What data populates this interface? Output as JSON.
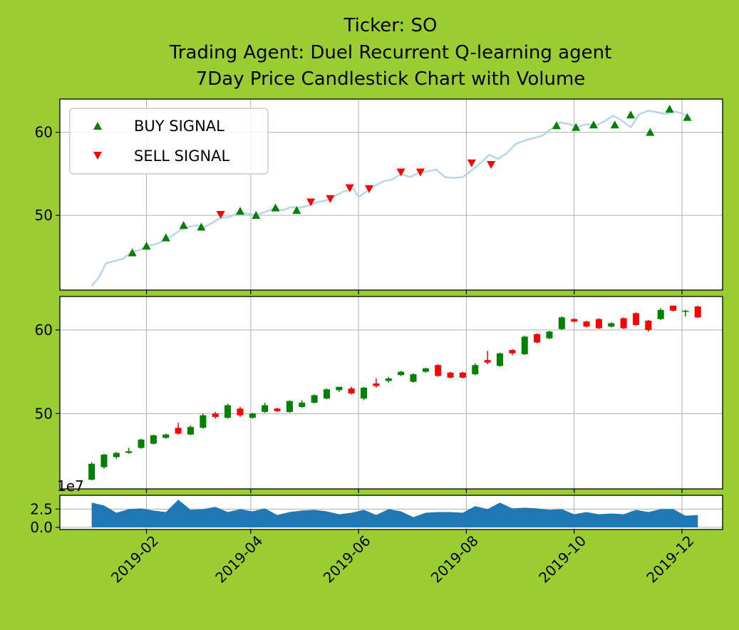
{
  "title_lines": [
    "Ticker: SO",
    "Trading Agent: Duel Recurrent Q-learning agent",
    "7Day Price Candlestick Chart with Volume"
  ],
  "legend": {
    "buy_label": "BUY SIGNAL",
    "sell_label": "SELL SIGNAL",
    "placement": "upper-left"
  },
  "colors": {
    "background": "#9acd32",
    "price_line": "#b9d6e8",
    "buy": "#008000",
    "sell": "#ff0000",
    "candle_up": "#008000",
    "candle_down": "#ff0000",
    "volume": "#1f77b4",
    "grid": "#b0b0b0"
  },
  "chart_data": [
    {
      "type": "line",
      "panel": "price",
      "ylim": [
        41,
        64
      ],
      "yticks": [
        {
          "v": 50,
          "label": "50"
        },
        {
          "v": 60,
          "label": "60"
        }
      ],
      "xlim": [
        "2018-12-14",
        "2019-12-24"
      ],
      "price": [
        [
          "2019-01-01",
          41.5
        ],
        [
          "2019-01-05",
          42.5
        ],
        [
          "2019-01-09",
          44.2
        ],
        [
          "2019-01-14",
          44.5
        ],
        [
          "2019-01-19",
          44.8
        ],
        [
          "2019-01-23",
          45.5
        ],
        [
          "2019-01-28",
          45.8
        ],
        [
          "2019-02-01",
          46.3
        ],
        [
          "2019-02-06",
          46.5
        ],
        [
          "2019-02-11",
          47.0
        ],
        [
          "2019-02-16",
          47.6
        ],
        [
          "2019-02-20",
          48.2
        ],
        [
          "2019-02-25",
          48.6
        ],
        [
          "2019-03-01",
          48.8
        ],
        [
          "2019-03-06",
          48.6
        ],
        [
          "2019-03-11",
          49.2
        ],
        [
          "2019-03-15",
          49.7
        ],
        [
          "2019-03-20",
          49.8
        ],
        [
          "2019-03-25",
          50.3
        ],
        [
          "2019-03-30",
          50.2
        ],
        [
          "2019-04-04",
          50.0
        ],
        [
          "2019-04-09",
          50.4
        ],
        [
          "2019-04-14",
          50.8
        ],
        [
          "2019-04-19",
          50.6
        ],
        [
          "2019-04-24",
          51.0
        ],
        [
          "2019-04-29",
          50.9
        ],
        [
          "2019-05-04",
          51.2
        ],
        [
          "2019-05-09",
          51.6
        ],
        [
          "2019-05-14",
          51.8
        ],
        [
          "2019-05-19",
          52.4
        ],
        [
          "2019-05-24",
          52.9
        ],
        [
          "2019-05-29",
          53.2
        ],
        [
          "2019-06-01",
          52.2
        ],
        [
          "2019-06-05",
          52.8
        ],
        [
          "2019-06-10",
          53.5
        ],
        [
          "2019-06-15",
          54.1
        ],
        [
          "2019-06-20",
          54.3
        ],
        [
          "2019-06-25",
          55.0
        ],
        [
          "2019-06-30",
          54.6
        ],
        [
          "2019-07-05",
          55.1
        ],
        [
          "2019-07-10",
          55.3
        ],
        [
          "2019-07-15",
          55.5
        ],
        [
          "2019-07-20",
          54.6
        ],
        [
          "2019-07-25",
          54.5
        ],
        [
          "2019-07-30",
          54.6
        ],
        [
          "2019-08-04",
          55.4
        ],
        [
          "2019-08-09",
          56.3
        ],
        [
          "2019-08-14",
          57.3
        ],
        [
          "2019-08-19",
          56.8
        ],
        [
          "2019-08-24",
          57.5
        ],
        [
          "2019-08-29",
          58.6
        ],
        [
          "2019-09-03",
          59.0
        ],
        [
          "2019-09-08",
          59.3
        ],
        [
          "2019-09-13",
          59.6
        ],
        [
          "2019-09-18",
          60.4
        ],
        [
          "2019-09-23",
          61.2
        ],
        [
          "2019-09-28",
          61.0
        ],
        [
          "2019-10-03",
          60.6
        ],
        [
          "2019-10-08",
          61.0
        ],
        [
          "2019-10-13",
          60.8
        ],
        [
          "2019-10-18",
          61.3
        ],
        [
          "2019-10-23",
          62.0
        ],
        [
          "2019-10-28",
          61.4
        ],
        [
          "2019-11-02",
          60.6
        ],
        [
          "2019-11-07",
          62.2
        ],
        [
          "2019-11-12",
          62.6
        ],
        [
          "2019-11-17",
          62.4
        ],
        [
          "2019-11-22",
          62.2
        ],
        [
          "2019-11-27",
          62.5
        ],
        [
          "2019-12-01",
          62.3
        ],
        [
          "2019-12-06",
          61.7
        ]
      ],
      "buy_signals": [
        [
          "2019-01-24",
          45.5
        ],
        [
          "2019-02-01",
          46.3
        ],
        [
          "2019-02-12",
          47.3
        ],
        [
          "2019-02-22",
          48.8
        ],
        [
          "2019-03-04",
          48.6
        ],
        [
          "2019-03-26",
          50.5
        ],
        [
          "2019-04-04",
          50.0
        ],
        [
          "2019-04-15",
          50.9
        ],
        [
          "2019-04-27",
          50.6
        ],
        [
          "2019-09-21",
          60.8
        ],
        [
          "2019-10-02",
          60.6
        ],
        [
          "2019-10-12",
          60.9
        ],
        [
          "2019-10-24",
          60.9
        ],
        [
          "2019-11-02",
          62.1
        ],
        [
          "2019-11-13",
          60.0
        ],
        [
          "2019-11-24",
          62.8
        ],
        [
          "2019-12-04",
          61.8
        ]
      ],
      "sell_signals": [
        [
          "2019-03-15",
          50.1
        ],
        [
          "2019-05-05",
          51.6
        ],
        [
          "2019-05-16",
          52.0
        ],
        [
          "2019-05-27",
          53.3
        ],
        [
          "2019-06-07",
          53.2
        ],
        [
          "2019-06-25",
          55.2
        ],
        [
          "2019-07-06",
          55.2
        ],
        [
          "2019-08-04",
          56.3
        ],
        [
          "2019-08-15",
          56.1
        ]
      ]
    },
    {
      "type": "candlestick",
      "panel": "candles",
      "ylim": [
        41,
        64
      ],
      "yticks": [
        {
          "v": 50,
          "label": "50"
        },
        {
          "v": 60,
          "label": "60"
        }
      ],
      "candles": [
        [
          "2019-01-01",
          42.1,
          44.0,
          42.0,
          44.2
        ],
        [
          "2019-01-08",
          43.6,
          45.1,
          43.4,
          45.2
        ],
        [
          "2019-01-15",
          44.8,
          45.3,
          44.6,
          45.4
        ],
        [
          "2019-01-22",
          45.3,
          45.5,
          45.2,
          45.9
        ],
        [
          "2019-01-29",
          45.9,
          46.9,
          45.8,
          47.0
        ],
        [
          "2019-02-05",
          46.4,
          47.4,
          46.3,
          47.5
        ],
        [
          "2019-02-12",
          47.1,
          47.5,
          47.0,
          47.6
        ],
        [
          "2019-02-19",
          48.3,
          47.6,
          47.5,
          48.9
        ],
        [
          "2019-02-26",
          47.5,
          48.4,
          47.4,
          48.6
        ],
        [
          "2019-03-05",
          48.3,
          49.8,
          48.2,
          50.0
        ],
        [
          "2019-03-12",
          50.0,
          49.6,
          49.4,
          50.2
        ],
        [
          "2019-03-19",
          49.5,
          51.0,
          49.4,
          51.2
        ],
        [
          "2019-03-26",
          50.6,
          49.8,
          49.6,
          50.8
        ],
        [
          "2019-04-02",
          49.5,
          50.0,
          49.4,
          50.1
        ],
        [
          "2019-04-09",
          50.2,
          51.0,
          50.1,
          51.3
        ],
        [
          "2019-04-16",
          50.6,
          50.3,
          50.2,
          50.7
        ],
        [
          "2019-04-23",
          50.2,
          51.5,
          50.1,
          51.6
        ],
        [
          "2019-04-30",
          50.8,
          51.3,
          50.7,
          51.6
        ],
        [
          "2019-05-07",
          51.3,
          52.2,
          51.2,
          52.3
        ],
        [
          "2019-05-14",
          51.8,
          52.9,
          51.7,
          53.0
        ],
        [
          "2019-05-21",
          52.8,
          53.2,
          52.6,
          53.2
        ],
        [
          "2019-05-28",
          53.0,
          52.4,
          52.3,
          53.2
        ],
        [
          "2019-06-04",
          51.8,
          53.1,
          51.6,
          53.2
        ],
        [
          "2019-06-11",
          53.6,
          53.3,
          53.1,
          54.2
        ],
        [
          "2019-06-18",
          53.9,
          54.2,
          53.7,
          54.4
        ],
        [
          "2019-06-25",
          54.6,
          55.0,
          54.5,
          55.1
        ],
        [
          "2019-07-02",
          53.8,
          54.7,
          53.7,
          54.8
        ],
        [
          "2019-07-09",
          55.0,
          55.4,
          54.9,
          55.5
        ],
        [
          "2019-07-16",
          55.8,
          54.5,
          54.4,
          55.9
        ],
        [
          "2019-07-23",
          54.9,
          54.3,
          54.2,
          55.0
        ],
        [
          "2019-07-30",
          54.9,
          54.3,
          54.2,
          55.0
        ],
        [
          "2019-08-06",
          54.7,
          55.8,
          54.6,
          56.0
        ],
        [
          "2019-08-13",
          56.4,
          56.1,
          55.9,
          57.5
        ],
        [
          "2019-08-20",
          55.7,
          57.2,
          55.6,
          57.3
        ],
        [
          "2019-08-27",
          57.6,
          57.2,
          57.0,
          57.7
        ],
        [
          "2019-09-03",
          57.1,
          59.2,
          57.0,
          59.3
        ],
        [
          "2019-09-10",
          59.5,
          58.5,
          58.4,
          59.6
        ],
        [
          "2019-09-17",
          59.0,
          59.8,
          58.9,
          59.9
        ],
        [
          "2019-09-24",
          60.1,
          61.5,
          60.0,
          61.6
        ],
        [
          "2019-10-01",
          61.3,
          61.0,
          60.9,
          61.4
        ],
        [
          "2019-10-08",
          61.0,
          60.4,
          60.3,
          61.1
        ],
        [
          "2019-10-15",
          61.3,
          60.2,
          60.1,
          61.4
        ],
        [
          "2019-10-22",
          60.4,
          60.8,
          60.3,
          60.9
        ],
        [
          "2019-10-29",
          61.4,
          60.2,
          60.1,
          61.5
        ],
        [
          "2019-11-05",
          62.0,
          60.6,
          60.5,
          62.1
        ],
        [
          "2019-11-12",
          61.1,
          60.0,
          59.8,
          61.2
        ],
        [
          "2019-11-19",
          61.3,
          62.4,
          61.2,
          62.6
        ],
        [
          "2019-11-26",
          62.9,
          62.3,
          62.2,
          62.9
        ],
        [
          "2019-12-03",
          62.2,
          62.3,
          61.6,
          62.4
        ],
        [
          "2019-12-10",
          62.8,
          61.5,
          61.4,
          62.9
        ]
      ]
    },
    {
      "type": "area",
      "panel": "volume",
      "ylim": [
        -0.3,
        4.4
      ],
      "yticks": [
        {
          "v": 0,
          "label": "0.0"
        },
        {
          "v": 2.5,
          "label": "2.5"
        }
      ],
      "offset_label": "1e7",
      "volume": [
        [
          "2019-01-01",
          3.4
        ],
        [
          "2019-01-08",
          3.0
        ],
        [
          "2019-01-15",
          2.0
        ],
        [
          "2019-01-22",
          2.5
        ],
        [
          "2019-01-29",
          2.6
        ],
        [
          "2019-02-05",
          2.3
        ],
        [
          "2019-02-12",
          2.1
        ],
        [
          "2019-02-19",
          3.8
        ],
        [
          "2019-02-26",
          2.4
        ],
        [
          "2019-03-05",
          2.5
        ],
        [
          "2019-03-12",
          2.8
        ],
        [
          "2019-03-19",
          2.1
        ],
        [
          "2019-03-26",
          2.5
        ],
        [
          "2019-04-02",
          2.2
        ],
        [
          "2019-04-09",
          2.6
        ],
        [
          "2019-04-16",
          1.7
        ],
        [
          "2019-04-23",
          2.1
        ],
        [
          "2019-04-30",
          2.3
        ],
        [
          "2019-05-07",
          2.4
        ],
        [
          "2019-05-14",
          2.2
        ],
        [
          "2019-05-21",
          1.8
        ],
        [
          "2019-05-28",
          2.0
        ],
        [
          "2019-06-04",
          2.4
        ],
        [
          "2019-06-11",
          1.7
        ],
        [
          "2019-06-18",
          2.5
        ],
        [
          "2019-06-25",
          2.2
        ],
        [
          "2019-07-02",
          1.4
        ],
        [
          "2019-07-09",
          2.0
        ],
        [
          "2019-07-16",
          2.1
        ],
        [
          "2019-07-23",
          2.1
        ],
        [
          "2019-07-30",
          2.0
        ],
        [
          "2019-08-06",
          2.9
        ],
        [
          "2019-08-13",
          2.5
        ],
        [
          "2019-08-20",
          3.4
        ],
        [
          "2019-08-27",
          2.6
        ],
        [
          "2019-09-03",
          2.7
        ],
        [
          "2019-09-10",
          2.6
        ],
        [
          "2019-09-17",
          2.4
        ],
        [
          "2019-09-24",
          2.5
        ],
        [
          "2019-10-01",
          1.8
        ],
        [
          "2019-10-08",
          2.1
        ],
        [
          "2019-10-15",
          1.8
        ],
        [
          "2019-10-22",
          1.9
        ],
        [
          "2019-10-29",
          1.8
        ],
        [
          "2019-11-05",
          2.4
        ],
        [
          "2019-11-12",
          2.1
        ],
        [
          "2019-11-19",
          2.5
        ],
        [
          "2019-11-26",
          2.5
        ],
        [
          "2019-12-03",
          1.6
        ],
        [
          "2019-12-10",
          1.7
        ]
      ]
    }
  ],
  "x_ticks": [
    {
      "date": "2019-02-01",
      "label": "2019-02"
    },
    {
      "date": "2019-04-01",
      "label": "2019-04"
    },
    {
      "date": "2019-06-01",
      "label": "2019-06"
    },
    {
      "date": "2019-08-01",
      "label": "2019-08"
    },
    {
      "date": "2019-10-01",
      "label": "2019-10"
    },
    {
      "date": "2019-12-01",
      "label": "2019-12"
    }
  ]
}
